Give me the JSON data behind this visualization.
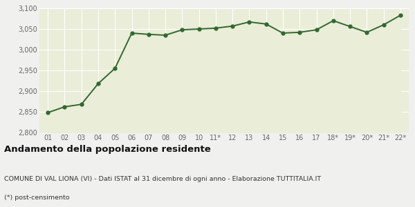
{
  "x_labels": [
    "01",
    "02",
    "03",
    "04",
    "05",
    "06",
    "07",
    "08",
    "09",
    "10",
    "11*",
    "12",
    "13",
    "14",
    "15",
    "16",
    "17",
    "18*",
    "19*",
    "20*",
    "21*",
    "22*"
  ],
  "y_values": [
    2848,
    2862,
    2868,
    2918,
    2955,
    3040,
    3037,
    3035,
    3048,
    3050,
    3052,
    3057,
    3067,
    3062,
    3040,
    3042,
    3048,
    3070,
    3056,
    3042,
    3060,
    3083
  ],
  "ylim": [
    2800,
    3100
  ],
  "yticks": [
    2800,
    2850,
    2900,
    2950,
    3000,
    3050,
    3100
  ],
  "line_color": "#2d6a2d",
  "fill_color": "#eaedd8",
  "marker_size": 3.5,
  "line_width": 1.4,
  "bg_color": "#f0f0ee",
  "plot_bg_color": "#eaedd8",
  "grid_color": "#ffffff",
  "title": "Andamento della popolazione residente",
  "subtitle": "COMUNE DI VAL LIONA (VI) - Dati ISTAT al 31 dicembre di ogni anno - Elaborazione TUTTITALIA.IT",
  "footnote": "(*) post-censimento",
  "title_fontsize": 9.5,
  "subtitle_fontsize": 6.8,
  "footnote_fontsize": 6.8,
  "tick_fontsize": 7,
  "ytick_color": "#666666",
  "xtick_color": "#666666"
}
